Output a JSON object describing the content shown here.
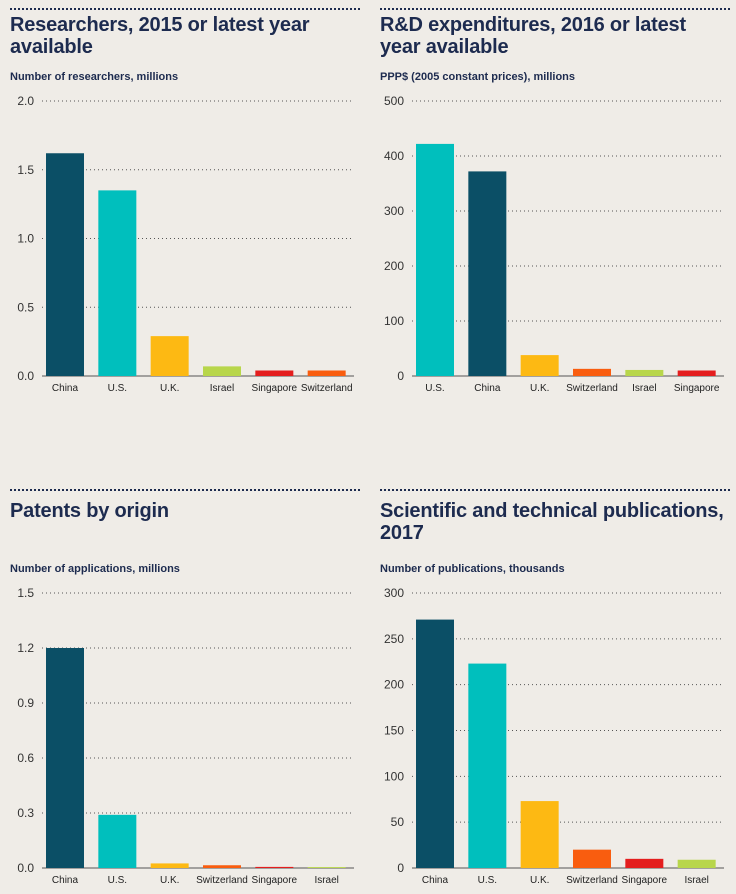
{
  "chart_data": [
    {
      "type": "bar",
      "title": "Researchers, 2015 or latest year available",
      "subtitle": "Number of researchers, millions",
      "categories": [
        "China",
        "U.S.",
        "U.K.",
        "Israel",
        "Singapore",
        "Switzerland"
      ],
      "values": [
        1.62,
        1.35,
        0.29,
        0.07,
        0.04,
        0.04
      ],
      "colors": [
        "#0b4f66",
        "#00bfbd",
        "#fdb913",
        "#b8d64b",
        "#e41e1e",
        "#f95d0f"
      ],
      "yticks": [
        0.0,
        0.5,
        1.0,
        1.5,
        2.0
      ],
      "ytick_labels": [
        "0.0",
        "0.5",
        "1.0",
        "1.5",
        "2.0"
      ],
      "ylim": [
        0,
        2.0
      ]
    },
    {
      "type": "bar",
      "title": "R&D expenditures, 2016 or latest year available",
      "subtitle": "PPP$ (2005 constant prices), millions",
      "categories": [
        "U.S.",
        "China",
        "U.K.",
        "Switzerland",
        "Israel",
        "Singapore"
      ],
      "values": [
        422,
        372,
        38,
        13,
        11,
        10
      ],
      "colors": [
        "#00bfbd",
        "#0b4f66",
        "#fdb913",
        "#f95d0f",
        "#b8d64b",
        "#e41e1e"
      ],
      "yticks": [
        0,
        100,
        200,
        300,
        400,
        500
      ],
      "ytick_labels": [
        "0",
        "100",
        "200",
        "300",
        "400",
        "500"
      ],
      "ylim": [
        0,
        500
      ]
    },
    {
      "type": "bar",
      "title": "Patents by origin",
      "subtitle": "Number of applications, millions",
      "categories": [
        "China",
        "U.S.",
        "U.K.",
        "Switzerland",
        "Singapore",
        "Israel"
      ],
      "values": [
        1.2,
        0.29,
        0.025,
        0.015,
        0.006,
        0.005
      ],
      "colors": [
        "#0b4f66",
        "#00bfbd",
        "#fdb913",
        "#f95d0f",
        "#e41e1e",
        "#b8d64b"
      ],
      "yticks": [
        0.0,
        0.3,
        0.6,
        0.9,
        1.2,
        1.5
      ],
      "ytick_labels": [
        "0.0",
        "0.3",
        "0.6",
        "0.9",
        "1.2",
        "1.5"
      ],
      "ylim": [
        0,
        1.5
      ]
    },
    {
      "type": "bar",
      "title": "Scientific and technical publications, 2017",
      "subtitle": "Number of publications, thousands",
      "categories": [
        "China",
        "U.S.",
        "U.K.",
        "Switzerland",
        "Singapore",
        "Israel"
      ],
      "values": [
        271,
        223,
        73,
        20,
        10,
        9
      ],
      "colors": [
        "#0b4f66",
        "#00bfbd",
        "#fdb913",
        "#f95d0f",
        "#e41e1e",
        "#b8d64b"
      ],
      "yticks": [
        0,
        50,
        100,
        150,
        200,
        250,
        300
      ],
      "ytick_labels": [
        "0",
        "50",
        "100",
        "150",
        "200",
        "250",
        "300"
      ],
      "ylim": [
        0,
        300
      ]
    }
  ]
}
